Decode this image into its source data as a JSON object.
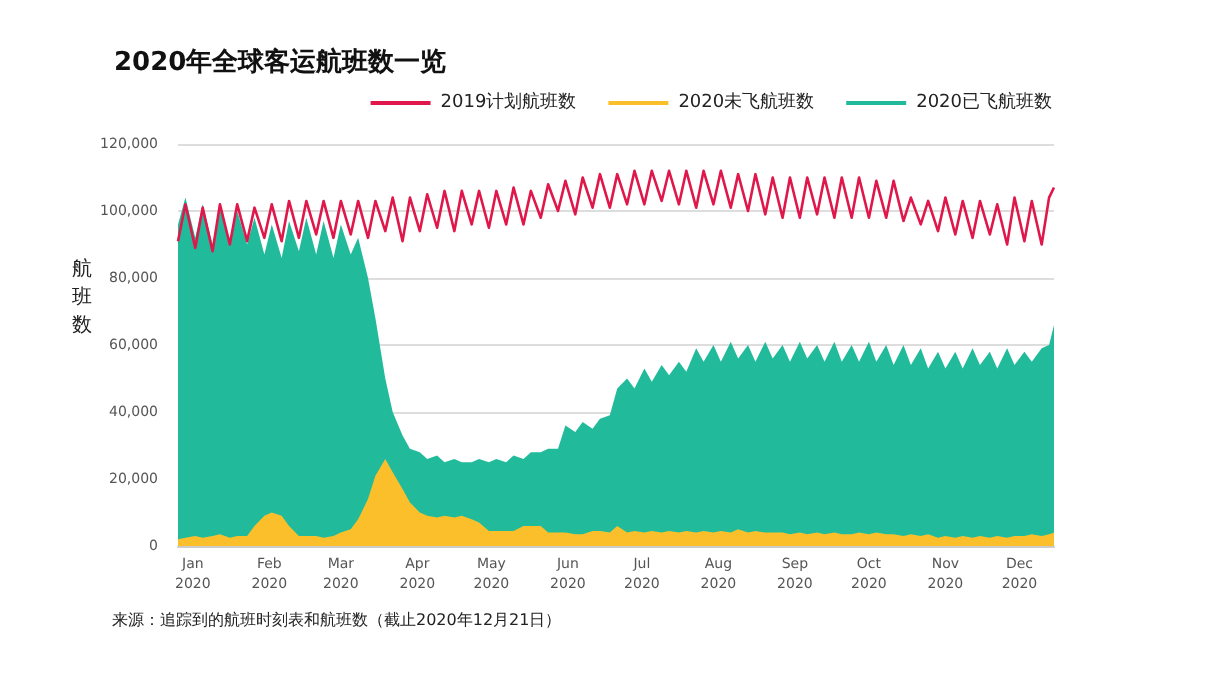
{
  "chart_data": {
    "type": "area",
    "title": "2020年全球客运航班数一览",
    "ylabel": "航班数",
    "annotations": [
      "来源：追踪到的航班时刻表和航班数（截止2020年12月21日）"
    ],
    "x": [
      "2020-01-01",
      "2020-01-04",
      "2020-01-08",
      "2020-01-11",
      "2020-01-15",
      "2020-01-18",
      "2020-01-22",
      "2020-01-25",
      "2020-01-29",
      "2020-02-01",
      "2020-02-05",
      "2020-02-08",
      "2020-02-12",
      "2020-02-15",
      "2020-02-19",
      "2020-02-22",
      "2020-02-26",
      "2020-02-29",
      "2020-03-04",
      "2020-03-07",
      "2020-03-11",
      "2020-03-14",
      "2020-03-18",
      "2020-03-21",
      "2020-03-25",
      "2020-03-28",
      "2020-04-01",
      "2020-04-04",
      "2020-04-08",
      "2020-04-11",
      "2020-04-15",
      "2020-04-18",
      "2020-04-22",
      "2020-04-25",
      "2020-04-29",
      "2020-05-02",
      "2020-05-06",
      "2020-05-09",
      "2020-05-13",
      "2020-05-16",
      "2020-05-20",
      "2020-05-23",
      "2020-05-27",
      "2020-05-30",
      "2020-06-03",
      "2020-06-06",
      "2020-06-10",
      "2020-06-13",
      "2020-06-17",
      "2020-06-20",
      "2020-06-24",
      "2020-06-27",
      "2020-07-01",
      "2020-07-04",
      "2020-07-08",
      "2020-07-11",
      "2020-07-15",
      "2020-07-18",
      "2020-07-22",
      "2020-07-25",
      "2020-07-29",
      "2020-08-01",
      "2020-08-05",
      "2020-08-08",
      "2020-08-12",
      "2020-08-15",
      "2020-08-19",
      "2020-08-22",
      "2020-08-26",
      "2020-08-29",
      "2020-09-02",
      "2020-09-05",
      "2020-09-09",
      "2020-09-12",
      "2020-09-16",
      "2020-09-19",
      "2020-09-23",
      "2020-09-26",
      "2020-09-30",
      "2020-10-03",
      "2020-10-07",
      "2020-10-10",
      "2020-10-14",
      "2020-10-17",
      "2020-10-21",
      "2020-10-24",
      "2020-10-28",
      "2020-10-31",
      "2020-11-04",
      "2020-11-07",
      "2020-11-11",
      "2020-11-14",
      "2020-11-18",
      "2020-11-21",
      "2020-11-25",
      "2020-11-28",
      "2020-12-02",
      "2020-12-05",
      "2020-12-09",
      "2020-12-12",
      "2020-12-16",
      "2020-12-19",
      "2020-12-21"
    ],
    "series": [
      {
        "name": "2019计划航班数",
        "type": "line",
        "color": "#e0174a",
        "values": [
          91000,
          102000,
          89000,
          101000,
          88000,
          102000,
          90000,
          102000,
          91000,
          101000,
          92000,
          102000,
          91000,
          103000,
          92000,
          103000,
          93000,
          103000,
          92000,
          103000,
          93000,
          103000,
          92000,
          103000,
          94000,
          104000,
          91000,
          104000,
          94000,
          105000,
          95000,
          106000,
          94000,
          106000,
          96000,
          106000,
          95000,
          106000,
          96000,
          107000,
          96000,
          106000,
          98000,
          108000,
          100000,
          109000,
          99000,
          110000,
          101000,
          111000,
          101000,
          111000,
          102000,
          112000,
          102000,
          112000,
          103000,
          112000,
          102000,
          112000,
          101000,
          112000,
          102000,
          112000,
          101000,
          111000,
          100000,
          111000,
          99000,
          110000,
          98000,
          110000,
          98000,
          110000,
          99000,
          110000,
          98000,
          110000,
          98000,
          110000,
          98000,
          109000,
          98000,
          109000,
          97000,
          104000,
          96000,
          103000,
          94000,
          104000,
          93000,
          103000,
          92000,
          103000,
          93000,
          102000,
          90000,
          104000,
          91000,
          103000,
          90000,
          104000,
          107000
        ]
      },
      {
        "name": "2020未飞航班数",
        "type": "area",
        "color": "#fbbf2c",
        "values": [
          2000,
          2500,
          3000,
          2500,
          3000,
          3500,
          2500,
          3000,
          3000,
          6000,
          9000,
          10000,
          9000,
          6000,
          3000,
          3000,
          3000,
          2500,
          3000,
          4000,
          5000,
          8000,
          14000,
          21000,
          26000,
          22000,
          17000,
          13000,
          10000,
          9000,
          8500,
          9000,
          8500,
          9000,
          8000,
          7000,
          4500,
          4500,
          4500,
          4500,
          6000,
          6000,
          6000,
          4000,
          4000,
          4000,
          3500,
          3500,
          4500,
          4500,
          4000,
          6000,
          4000,
          4500,
          4000,
          4500,
          4000,
          4500,
          4000,
          4500,
          4000,
          4500,
          4000,
          4500,
          4000,
          5000,
          4000,
          4500,
          4000,
          4000,
          4000,
          3500,
          4000,
          3500,
          4000,
          3500,
          4000,
          3500,
          3500,
          4000,
          3500,
          4000,
          3500,
          3500,
          3000,
          3500,
          3000,
          3500,
          2500,
          3000,
          2500,
          3000,
          2500,
          3000,
          2500,
          3000,
          2500,
          3000,
          3000,
          3500,
          3000,
          3500,
          4000
        ]
      },
      {
        "name": "2020已飞航班数",
        "color": "#21bb9c",
        "values": [
          96000,
          104000,
          92000,
          102000,
          90000,
          101000,
          91000,
          100000,
          90000,
          98000,
          87000,
          96000,
          86000,
          97000,
          88000,
          98000,
          87000,
          97000,
          86000,
          96000,
          87000,
          92000,
          80000,
          68000,
          50000,
          40000,
          33000,
          29000,
          28000,
          26000,
          27000,
          25000,
          26000,
          25000,
          25000,
          26000,
          25000,
          26000,
          25000,
          27000,
          26000,
          28000,
          28000,
          29000,
          29000,
          36000,
          34000,
          37000,
          35000,
          38000,
          39000,
          47000,
          50000,
          47000,
          53000,
          49000,
          54000,
          51000,
          55000,
          52000,
          59000,
          55000,
          60000,
          55000,
          61000,
          56000,
          60000,
          55000,
          61000,
          56000,
          60000,
          55000,
          61000,
          56000,
          60000,
          55000,
          61000,
          55000,
          60000,
          55000,
          61000,
          55000,
          60000,
          54000,
          60000,
          54000,
          59000,
          53000,
          58000,
          53000,
          58000,
          53000,
          59000,
          54000,
          58000,
          53000,
          59000,
          54000,
          58000,
          55000,
          59000,
          60000,
          66000
        ]
      }
    ],
    "xlim": [
      "2020-01-01",
      "2020-12-21"
    ],
    "xticks": [
      {
        "value": "2020-01-07",
        "label": "Jan\n2020"
      },
      {
        "value": "2020-02-07",
        "label": "Feb\n2020"
      },
      {
        "value": "2020-03-07",
        "label": "Mar\n2020"
      },
      {
        "value": "2020-04-07",
        "label": "Apr\n2020"
      },
      {
        "value": "2020-05-07",
        "label": "May\n2020"
      },
      {
        "value": "2020-06-07",
        "label": "Jun\n2020"
      },
      {
        "value": "2020-07-07",
        "label": "Jul\n2020"
      },
      {
        "value": "2020-08-07",
        "label": "Aug\n2020"
      },
      {
        "value": "2020-09-07",
        "label": "Sep\n2020"
      },
      {
        "value": "2020-10-07",
        "label": "Oct\n2020"
      },
      {
        "value": "2020-11-07",
        "label": "Nov\n2020"
      },
      {
        "value": "2020-12-07",
        "label": "Dec\n2020"
      }
    ],
    "ylim": [
      0,
      120000
    ],
    "yticks": [
      {
        "value": 0,
        "label": "0"
      },
      {
        "value": 20000,
        "label": "20,000"
      },
      {
        "value": 40000,
        "label": "40,000"
      },
      {
        "value": 60000,
        "label": "60,000"
      },
      {
        "value": 80000,
        "label": "80,000"
      },
      {
        "value": 100000,
        "label": "100,000"
      },
      {
        "value": 120000,
        "label": "120,000"
      }
    ],
    "grid": "y",
    "legend": "top right",
    "marker": "none"
  }
}
